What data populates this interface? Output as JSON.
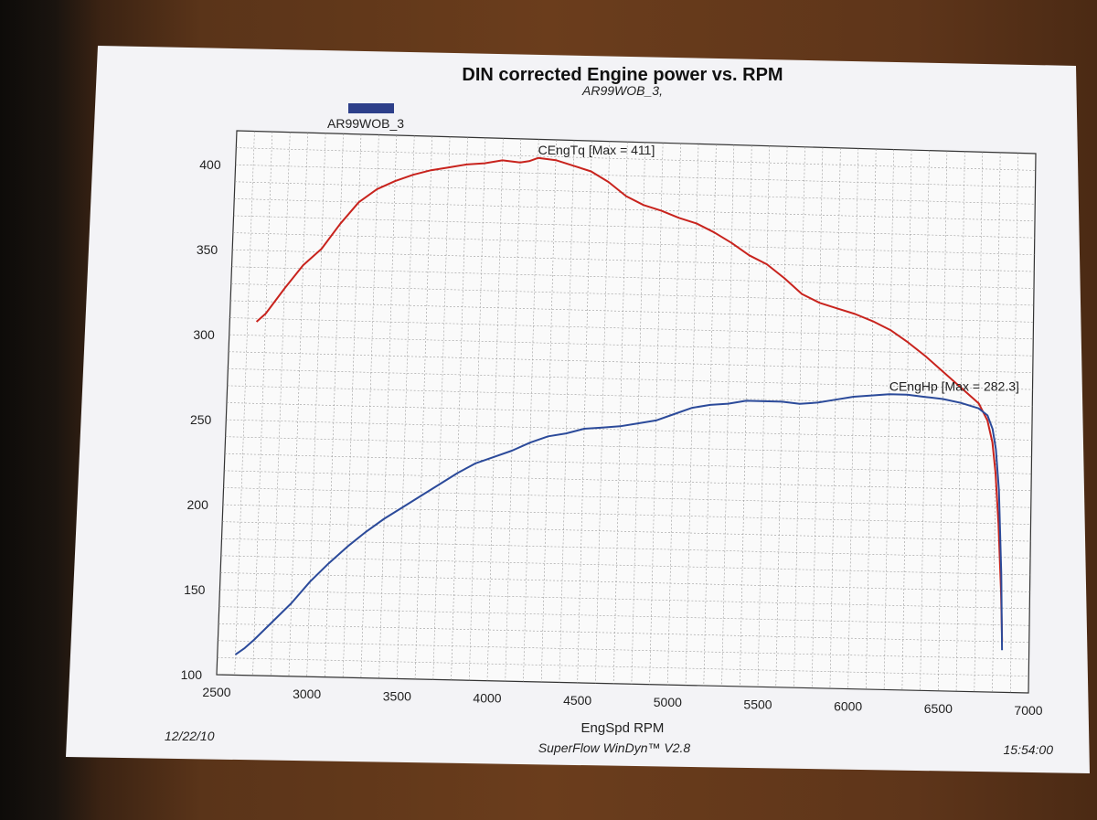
{
  "chart_data": {
    "type": "line",
    "title": "DIN corrected Engine power vs. RPM",
    "subtitle": "AR99WOB_3,",
    "legend_label": "AR99WOB_3",
    "xlabel": "EngSpd  RPM",
    "xlim": [
      2500,
      7000
    ],
    "ylim": [
      100,
      420
    ],
    "x_ticks": [
      "2500",
      "3000",
      "3500",
      "4000",
      "4500",
      "5000",
      "5500",
      "6000",
      "6500",
      "7000"
    ],
    "y_ticks": [
      "100",
      "150",
      "200",
      "250",
      "300",
      "350",
      "400"
    ],
    "grid": true,
    "footer_left": "12/22/10",
    "footer_center": "SuperFlow WinDyn™  V2.8",
    "footer_right": "15:54:00",
    "colors": {
      "torque": "#c8231d",
      "hp": "#2b4a9a",
      "legend_swatch": "#2d3f8a"
    },
    "series": [
      {
        "name": "CEngTq",
        "label": "CEngTq [Max = 411]",
        "color": "#c8231d",
        "points": [
          [
            2650,
            308
          ],
          [
            2700,
            313
          ],
          [
            2800,
            328
          ],
          [
            2900,
            342
          ],
          [
            3000,
            352
          ],
          [
            3100,
            367
          ],
          [
            3200,
            380
          ],
          [
            3300,
            388
          ],
          [
            3400,
            393
          ],
          [
            3500,
            397
          ],
          [
            3600,
            400
          ],
          [
            3700,
            402
          ],
          [
            3800,
            404
          ],
          [
            3900,
            405
          ],
          [
            4000,
            407
          ],
          [
            4100,
            406
          ],
          [
            4150,
            407
          ],
          [
            4200,
            409
          ],
          [
            4300,
            408
          ],
          [
            4400,
            405
          ],
          [
            4500,
            402
          ],
          [
            4600,
            396
          ],
          [
            4700,
            388
          ],
          [
            4800,
            383
          ],
          [
            4900,
            380
          ],
          [
            5000,
            376
          ],
          [
            5100,
            373
          ],
          [
            5200,
            368
          ],
          [
            5300,
            362
          ],
          [
            5400,
            355
          ],
          [
            5500,
            350
          ],
          [
            5600,
            342
          ],
          [
            5700,
            333
          ],
          [
            5800,
            328
          ],
          [
            5900,
            325
          ],
          [
            6000,
            322
          ],
          [
            6100,
            318
          ],
          [
            6200,
            313
          ],
          [
            6300,
            306
          ],
          [
            6400,
            298
          ],
          [
            6500,
            289
          ],
          [
            6600,
            280
          ],
          [
            6700,
            271
          ],
          [
            6750,
            261
          ],
          [
            6780,
            248
          ],
          [
            6800,
            230
          ],
          [
            6820,
            200
          ],
          [
            6840,
            160
          ],
          [
            6850,
            130
          ]
        ]
      },
      {
        "name": "CEngHp",
        "label": "CEngHp [Max = 282.3]",
        "color": "#2b4a9a",
        "points": [
          [
            2600,
            112
          ],
          [
            2650,
            116
          ],
          [
            2700,
            121
          ],
          [
            2800,
            132
          ],
          [
            2900,
            143
          ],
          [
            3000,
            156
          ],
          [
            3100,
            167
          ],
          [
            3200,
            177
          ],
          [
            3300,
            186
          ],
          [
            3400,
            194
          ],
          [
            3500,
            201
          ],
          [
            3600,
            208
          ],
          [
            3700,
            215
          ],
          [
            3800,
            222
          ],
          [
            3900,
            228
          ],
          [
            4000,
            232
          ],
          [
            4100,
            236
          ],
          [
            4200,
            241
          ],
          [
            4300,
            245
          ],
          [
            4400,
            247
          ],
          [
            4500,
            250
          ],
          [
            4600,
            251
          ],
          [
            4700,
            252
          ],
          [
            4800,
            254
          ],
          [
            4900,
            256
          ],
          [
            5000,
            260
          ],
          [
            5100,
            264
          ],
          [
            5200,
            266
          ],
          [
            5300,
            267
          ],
          [
            5400,
            269
          ],
          [
            5500,
            269
          ],
          [
            5600,
            269
          ],
          [
            5700,
            268
          ],
          [
            5800,
            269
          ],
          [
            5900,
            271
          ],
          [
            6000,
            273
          ],
          [
            6100,
            274
          ],
          [
            6200,
            275
          ],
          [
            6300,
            275
          ],
          [
            6400,
            274
          ],
          [
            6500,
            273
          ],
          [
            6600,
            271
          ],
          [
            6700,
            268
          ],
          [
            6750,
            264
          ],
          [
            6780,
            256
          ],
          [
            6800,
            244
          ],
          [
            6820,
            220
          ],
          [
            6840,
            170
          ],
          [
            6850,
            125
          ]
        ]
      }
    ]
  }
}
